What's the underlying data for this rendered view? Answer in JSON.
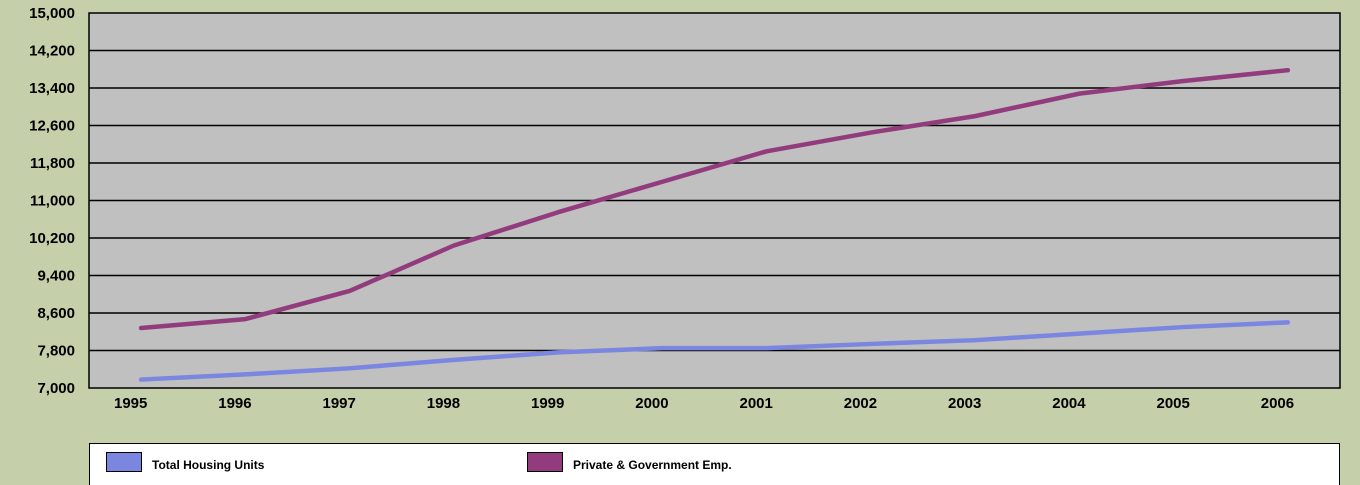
{
  "chart_data": {
    "type": "line",
    "title": "",
    "xlabel": "",
    "ylabel": "",
    "categories": [
      "1995",
      "1996",
      "1997",
      "1998",
      "1999",
      "2000",
      "2001",
      "2002",
      "2003",
      "2004",
      "2005",
      "2006"
    ],
    "y_ticks": [
      "7,000",
      "7,800",
      "8,600",
      "9,400",
      "10,200",
      "11,000",
      "11,800",
      "12,600",
      "13,400",
      "14,200",
      "15,000"
    ],
    "ylim": [
      7000,
      15000
    ],
    "grid": true,
    "legend_position": "bottom",
    "plot_background": "#c0c0c0",
    "page_background": "#c5cfa9",
    "series": [
      {
        "name": "Total Housing Units",
        "color": "#7b86e0",
        "values": [
          7180,
          7290,
          7420,
          7600,
          7760,
          7850,
          7850,
          7940,
          8020,
          8160,
          8300,
          8400
        ]
      },
      {
        "name": "Private & Government Emp.",
        "color": "#923c7e",
        "values": [
          8280,
          8470,
          9070,
          10040,
          10750,
          11400,
          12050,
          12450,
          12800,
          13280,
          13550,
          13780
        ]
      }
    ]
  }
}
